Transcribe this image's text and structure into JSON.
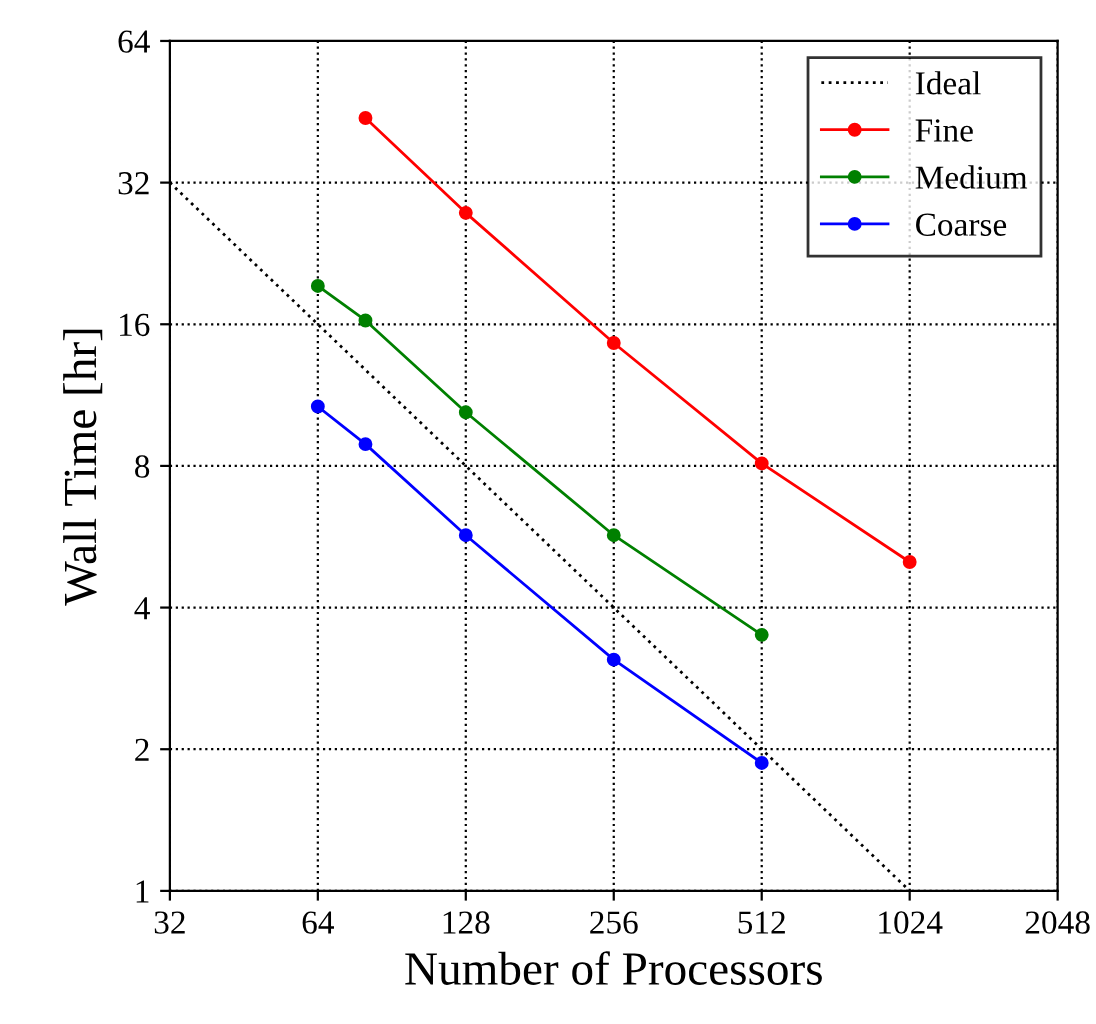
{
  "chart_data": {
    "type": "line",
    "xlabel": "Number of Processors",
    "ylabel": "Wall Time [hr]",
    "log": "xy",
    "grid": true,
    "legend": "top right",
    "xlim": [
      32,
      2048
    ],
    "xticks": [
      32,
      64,
      128,
      256,
      512,
      1024,
      2048
    ],
    "ylim": [
      1,
      64
    ],
    "yticks": [
      1,
      2,
      4,
      8,
      16,
      32,
      64
    ],
    "series": [
      {
        "name": "Ideal",
        "color": "#000000",
        "x": [
          32,
          1024
        ],
        "values": [
          32,
          1
        ],
        "line_style": "dotted",
        "marker": "none"
      },
      {
        "name": "Fine",
        "color": "#ff0000",
        "x": [
          80,
          128,
          256,
          512,
          1024
        ],
        "values": [
          43.9,
          27.6,
          14.6,
          8.1,
          5.0
        ],
        "marker": "circle"
      },
      {
        "name": "Medium",
        "color": "#008000",
        "x": [
          64,
          80,
          128,
          256,
          512
        ],
        "values": [
          19.3,
          16.3,
          10.4,
          5.7,
          3.5
        ],
        "marker": "circle"
      },
      {
        "name": "Coarse",
        "color": "#0000ff",
        "x": [
          64,
          80,
          128,
          256,
          512
        ],
        "values": [
          10.7,
          8.9,
          5.7,
          3.1,
          1.87
        ],
        "marker": "circle"
      }
    ]
  }
}
